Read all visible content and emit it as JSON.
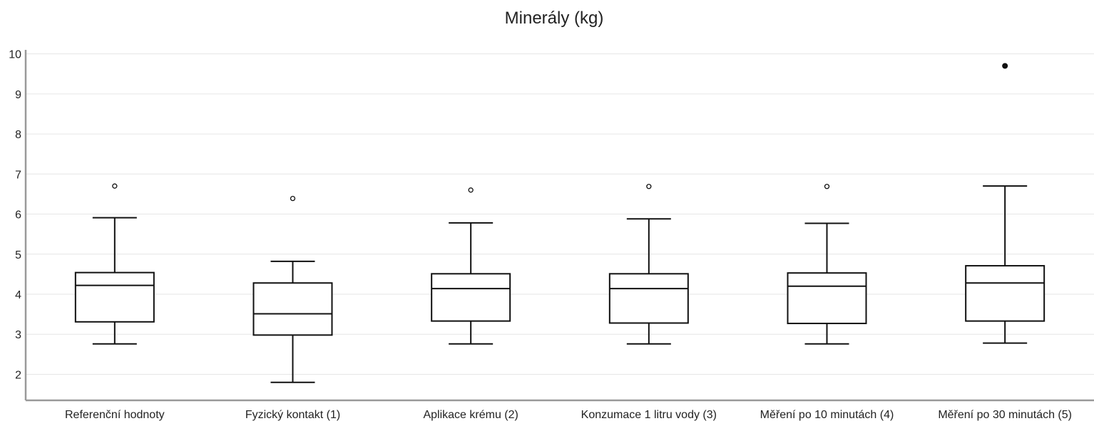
{
  "chart_data": {
    "type": "boxplot",
    "title": "Minerály (kg)",
    "xlabel": "",
    "ylabel": "",
    "ylim": [
      1.35,
      10.1
    ],
    "yticks": [
      2,
      3,
      4,
      5,
      6,
      7,
      8,
      9,
      10
    ],
    "grid": true,
    "categories": [
      "Referenční hodnoty",
      "Fyzický kontakt (1)",
      "Aplikace krému (2)",
      "Konzumace 1 litru vody (3)",
      "Měření po 10 minutách (4)",
      "Měření po 30 minutách (5)"
    ],
    "boxes": [
      {
        "whisker_low": 2.76,
        "q1": 3.31,
        "median": 4.22,
        "q3": 4.54,
        "whisker_high": 5.91,
        "outliers": [
          6.7
        ],
        "extremes": []
      },
      {
        "whisker_low": 1.8,
        "q1": 2.98,
        "median": 3.51,
        "q3": 4.28,
        "whisker_high": 4.82,
        "outliers": [
          6.39
        ],
        "extremes": []
      },
      {
        "whisker_low": 2.76,
        "q1": 3.33,
        "median": 4.14,
        "q3": 4.51,
        "whisker_high": 5.78,
        "outliers": [
          6.6
        ],
        "extremes": []
      },
      {
        "whisker_low": 2.76,
        "q1": 3.28,
        "median": 4.14,
        "q3": 4.51,
        "whisker_high": 5.88,
        "outliers": [
          6.69
        ],
        "extremes": []
      },
      {
        "whisker_low": 2.76,
        "q1": 3.27,
        "median": 4.2,
        "q3": 4.53,
        "whisker_high": 5.77,
        "outliers": [
          6.69
        ],
        "extremes": []
      },
      {
        "whisker_low": 2.78,
        "q1": 3.33,
        "median": 4.28,
        "q3": 4.71,
        "whisker_high": 6.7,
        "outliers": [],
        "extremes": [
          9.7
        ]
      }
    ],
    "colors": {
      "box": "#111111",
      "grid": "#e6e6e6",
      "axis": "#999999",
      "text": "#222222"
    }
  }
}
